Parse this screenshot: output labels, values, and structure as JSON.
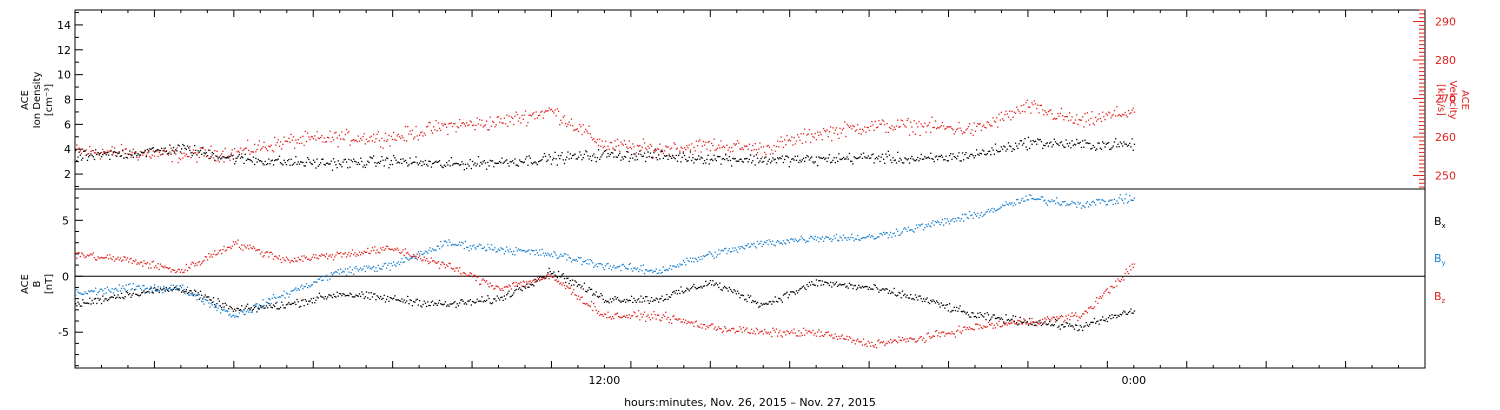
{
  "colors": {
    "density": "#000000",
    "velocity": "#e0201c",
    "bx": "#000000",
    "by": "#1a80d0",
    "bz": "#e0201c",
    "axis": "#000000"
  },
  "chart_data": [
    {
      "type": "scatter",
      "panel": "top",
      "ylabel_left": [
        "ACE",
        "Ion Density",
        "[cm⁻³]"
      ],
      "ylabel_right": [
        "ACE",
        "Velocity",
        "[km/s]"
      ],
      "left_ticks": [
        "2",
        "4",
        "6",
        "8",
        "10",
        "12",
        "14"
      ],
      "right_ticks": [
        "250",
        "260",
        "270",
        "280",
        "290"
      ],
      "left_ylim": [
        0.8,
        15.2
      ],
      "right_ylim": [
        246.5,
        293
      ],
      "x_hours_range": [
        0,
        51
      ],
      "data_end_hour": 40,
      "series": [
        {
          "key": "density",
          "axis": "left",
          "x": [
            0,
            2,
            4,
            6,
            8,
            10,
            12,
            14,
            16,
            18,
            20,
            22,
            24,
            26,
            28,
            30,
            32,
            34,
            36,
            38,
            40
          ],
          "y": [
            3.4,
            3.7,
            4.1,
            3.3,
            3.0,
            2.9,
            3.1,
            2.8,
            3.0,
            3.3,
            3.6,
            3.5,
            3.3,
            3.2,
            3.2,
            3.4,
            3.2,
            3.6,
            4.6,
            4.4,
            4.4
          ]
        },
        {
          "key": "velocity",
          "axis": "right",
          "x": [
            0,
            2,
            4,
            6,
            8,
            10,
            12,
            14,
            16,
            18,
            20,
            22,
            24,
            26,
            28,
            30,
            32,
            34,
            36,
            38,
            40
          ],
          "y": [
            256.5,
            256,
            255.5,
            256,
            259,
            260,
            260,
            263,
            264,
            267,
            258,
            257,
            258,
            257,
            261,
            263,
            263,
            262,
            268,
            264,
            267
          ]
        }
      ]
    },
    {
      "type": "scatter",
      "panel": "bottom",
      "ylabel_left": [
        "ACE",
        "B",
        "[nT]"
      ],
      "left_ticks": [
        "-5",
        "0",
        "5"
      ],
      "ylim": [
        -8.2,
        7.8
      ],
      "x_hours_range": [
        0,
        51
      ],
      "data_end_hour": 40,
      "xtick_labels": [
        "12:00",
        "0:00"
      ],
      "xtick_hours": [
        20,
        40
      ],
      "xlabel": "hours:minutes, Nov. 26, 2015 – Nov. 27, 2015",
      "legend": [
        "Bx",
        "By",
        "Bz"
      ],
      "series": [
        {
          "key": "bx",
          "x": [
            0,
            2,
            4,
            6,
            8,
            10,
            12,
            14,
            16,
            18,
            20,
            22,
            24,
            26,
            28,
            30,
            32,
            34,
            36,
            38,
            40
          ],
          "y": [
            -2.5,
            -1.5,
            -1.0,
            -3.0,
            -2.5,
            -1.5,
            -2.0,
            -2.5,
            -2.0,
            0.5,
            -2.0,
            -2.0,
            -0.5,
            -2.5,
            -0.5,
            -1.0,
            -2.0,
            -3.5,
            -4.0,
            -4.5,
            -3.0
          ]
        },
        {
          "key": "by",
          "x": [
            0,
            2,
            4,
            6,
            8,
            10,
            12,
            14,
            16,
            18,
            20,
            22,
            24,
            26,
            28,
            30,
            32,
            34,
            36,
            38,
            40
          ],
          "y": [
            -1.5,
            -1.0,
            -1.0,
            -3.5,
            -1.5,
            0.5,
            1.0,
            3.0,
            2.5,
            2.0,
            1.0,
            0.5,
            2.0,
            3.0,
            3.5,
            3.5,
            4.5,
            5.5,
            7.0,
            6.5,
            7.0
          ]
        },
        {
          "key": "bz",
          "x": [
            0,
            2,
            4,
            6,
            8,
            10,
            12,
            14,
            16,
            18,
            20,
            22,
            24,
            26,
            28,
            30,
            32,
            34,
            36,
            38,
            40
          ],
          "y": [
            2.0,
            1.5,
            0.5,
            3.0,
            1.5,
            2.0,
            2.5,
            1.0,
            -1.0,
            0.0,
            -3.5,
            -3.5,
            -4.5,
            -5.0,
            -5.0,
            -6.0,
            -5.5,
            -4.5,
            -4.0,
            -3.5,
            1.0
          ]
        }
      ]
    }
  ]
}
